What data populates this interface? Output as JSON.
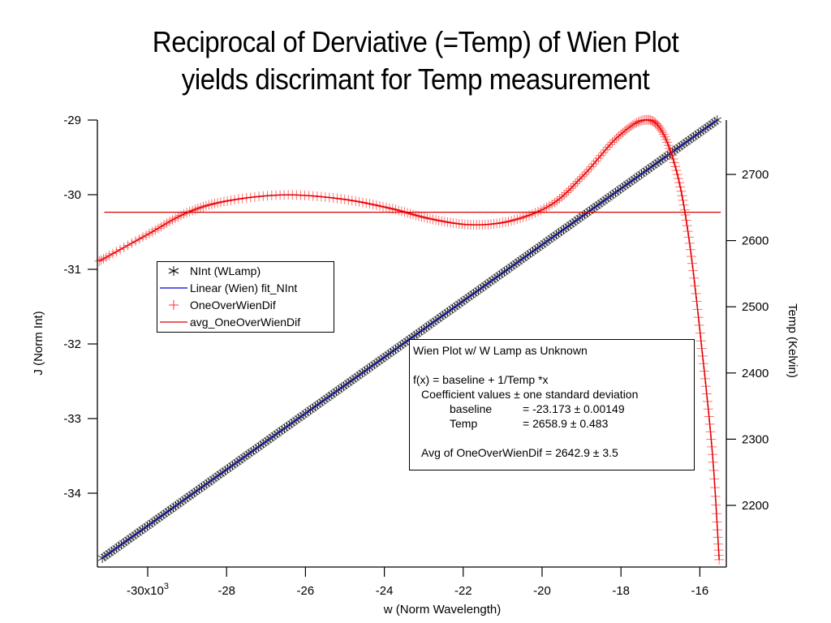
{
  "title_line1": "Reciprocal of Derviative (=Temp) of Wien Plot",
  "title_line2": "yields  discrimant for Temp measurement",
  "legend": {
    "items": [
      {
        "label": "NInt (WLamp)",
        "symbol": "asterisk-icon",
        "color": "#000000"
      },
      {
        "label": "Linear (Wien) fit_NInt",
        "symbol": "line-icon",
        "color": "#0000cc"
      },
      {
        "label": "OneOverWienDif",
        "symbol": "plus-icon",
        "color": "#ff0000"
      },
      {
        "label": "avg_OneOverWienDif",
        "symbol": "line-icon",
        "color": "#dd0000"
      }
    ]
  },
  "annotation": {
    "line1": "Wien Plot w/ W Lamp as Unknown",
    "line2": "f(x) = baseline + 1/Temp *x",
    "line3": "Coefficient values ± one standard deviation",
    "baseline_label": "baseline",
    "baseline_value": "= -23.173 ± 0.00149",
    "temp_label": "Temp",
    "temp_value": "= 2658.9 ± 0.483",
    "avg_line": "Avg of OneOverWienDif =  2642.9 ± 3.5"
  },
  "chart_data": {
    "type": "line",
    "title": "Reciprocal of Derviative (=Temp) of Wien Plot yields  discrimant for Temp measurement",
    "xlabel": "w (Norm Wavelength)",
    "ylabel": "J (Norm Int)",
    "y2label": "Temp (Kelvin)",
    "xlim": [
      -31.3,
      -15.4
    ],
    "ylim": [
      -35.0,
      -28.9
    ],
    "y2lim": [
      2106,
      2786
    ],
    "x_ticks": [
      -30,
      -28,
      -26,
      -24,
      -22,
      -20,
      -18,
      -16
    ],
    "x_tick_labels": [
      "-30x10",
      "-28",
      "-26",
      "-24",
      "-22",
      "-20",
      "-18",
      "-16"
    ],
    "x_tick_first_superscript": "3",
    "y_ticks": [
      -29,
      -30,
      -31,
      -32,
      -33,
      -34
    ],
    "y_tick_labels": [
      "-29",
      "-30",
      "-31",
      "-32",
      "-33",
      "-34"
    ],
    "y2_ticks": [
      2700,
      2600,
      2500,
      2400,
      2300,
      2200
    ],
    "y2_tick_labels": [
      "2700",
      "2600",
      "2500",
      "2400",
      "2300",
      "2200"
    ],
    "grid": false,
    "legend_position": "upper-left",
    "series": [
      {
        "name": "NInt (WLamp)",
        "axis": "left",
        "marker": "asterisk",
        "color": "#000000",
        "x": [
          -31.15,
          -15.56
        ],
        "y": [
          -34.87,
          -29.0
        ]
      },
      {
        "name": "Linear (Wien) fit_NInt",
        "axis": "left",
        "marker": "none",
        "color": "#0000cc",
        "x": [
          -31.15,
          -15.56
        ],
        "y": [
          -34.87,
          -29.0
        ]
      },
      {
        "name": "OneOverWienDif",
        "axis": "right",
        "marker": "plus",
        "color": "#ff0000",
        "x": [
          -31.23,
          -30.04,
          -29.01,
          -27.98,
          -26.54,
          -25.1,
          -23.87,
          -22.84,
          -21.81,
          -20.78,
          -19.75,
          -18.93,
          -18.11,
          -17.43,
          -16.98,
          -16.57,
          -16.26,
          -15.95,
          -15.68,
          -15.51
        ],
        "y": [
          2569,
          2608,
          2642,
          2660,
          2669,
          2663,
          2649,
          2633,
          2624,
          2630,
          2655,
          2700,
          2755,
          2782,
          2767,
          2700,
          2596,
          2437,
          2277,
          2118
        ]
      },
      {
        "name": "avg_OneOverWienDif",
        "axis": "right",
        "marker": "none",
        "color": "#dd0000",
        "x": [
          -31.1,
          -15.47
        ],
        "y": [
          2642.9,
          2642.9
        ]
      }
    ]
  }
}
